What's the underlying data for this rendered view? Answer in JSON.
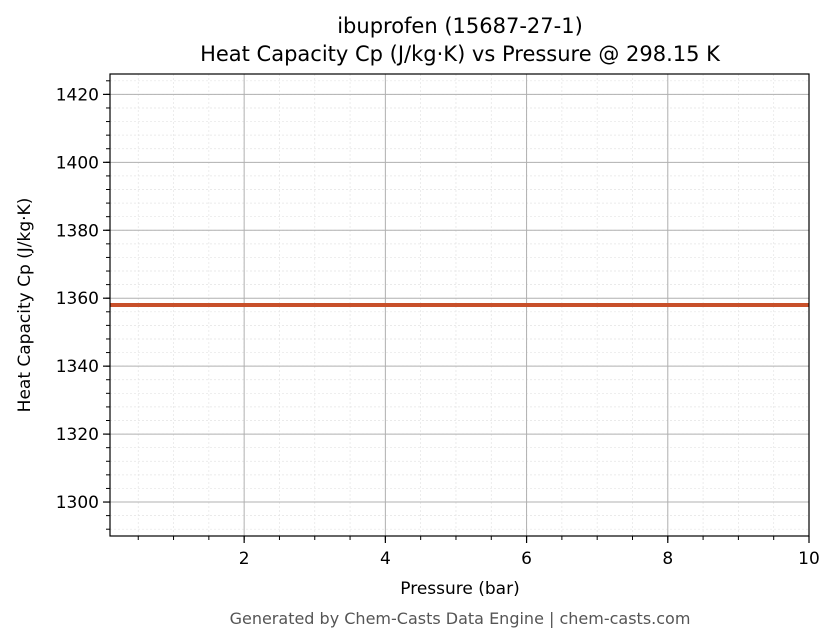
{
  "chart_data": {
    "type": "line",
    "title": "ibuprofen (15687-27-1)",
    "subtitle": "Heat Capacity Cp (J/kg·K) vs Pressure @ 298.15 K",
    "xlabel": "Pressure (bar)",
    "ylabel": "Heat Capacity Cp (J/kg·K)",
    "xlim": [
      0.1,
      10
    ],
    "ylim": [
      1290,
      1426
    ],
    "x_ticks": [
      2,
      4,
      6,
      8,
      10
    ],
    "y_ticks": [
      1300,
      1320,
      1340,
      1360,
      1380,
      1400,
      1420
    ],
    "x_minor_step": 0.5,
    "y_minor_step": 4,
    "grid": true,
    "series": [
      {
        "color": "#c8502a",
        "x": [
          0.1,
          1,
          2,
          3,
          4,
          5,
          6,
          7,
          8,
          9,
          10
        ],
        "y": [
          1358,
          1358,
          1358,
          1358,
          1358,
          1358,
          1358,
          1358,
          1358,
          1358,
          1358
        ]
      }
    ]
  },
  "footer": "Generated by Chem-Casts Data Engine | chem-casts.com"
}
